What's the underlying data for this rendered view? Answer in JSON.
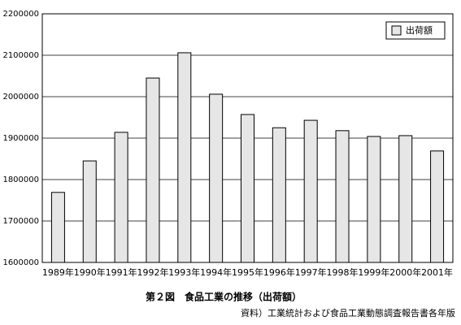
{
  "chart_data": {
    "type": "bar",
    "title": "第２図　食品工業の推移（出荷額）",
    "source": "資料）工業統計および食品工業動態調査報告書各年版",
    "categories": [
      "1989年",
      "1990年",
      "1991年",
      "1992年",
      "1993年",
      "1994年",
      "1995年",
      "1996年",
      "1997年",
      "1998年",
      "1999年",
      "2000年",
      "2001年"
    ],
    "series": [
      {
        "name": "出荷額",
        "color": "#e6e6e6",
        "values": [
          1769000,
          1845000,
          1914000,
          2045000,
          2106000,
          2006000,
          1957000,
          1925000,
          1943000,
          1918000,
          1904000,
          1906000,
          1869000
        ]
      }
    ],
    "ylim": [
      1600000,
      2200000
    ],
    "yticks": [
      1600000,
      1700000,
      1800000,
      1900000,
      2000000,
      2100000,
      2200000
    ],
    "grid": true,
    "legend": "top-right"
  }
}
